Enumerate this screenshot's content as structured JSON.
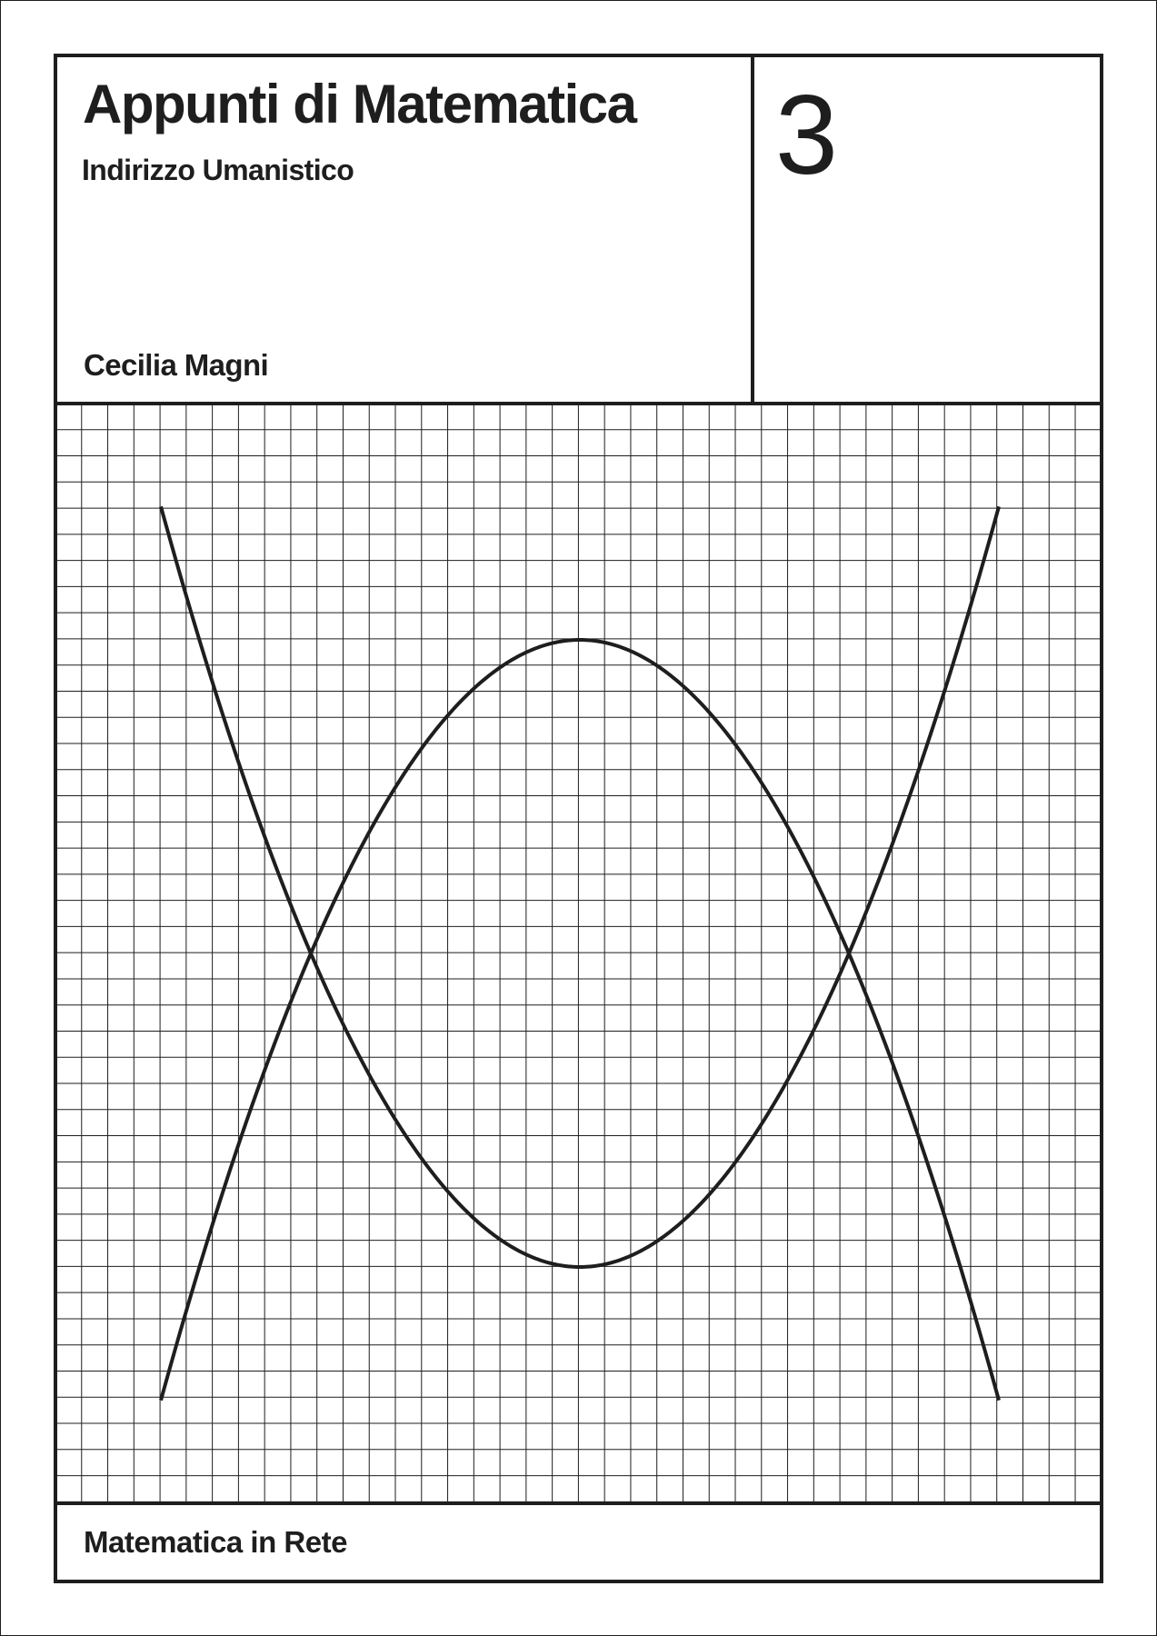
{
  "cover": {
    "title": "Appunti di Matematica",
    "subtitle": "Indirizzo Umanistico",
    "author": "Cecilia Magni",
    "volume": "3",
    "publisher": "Matematica in Rete"
  },
  "colors": {
    "ink": "#1e1e1e",
    "paper": "#ffffff"
  },
  "illustration": {
    "description_icon": "graph-paper-parabolas-icon",
    "curves": [
      "upward-parabola",
      "downward-parabola"
    ]
  }
}
